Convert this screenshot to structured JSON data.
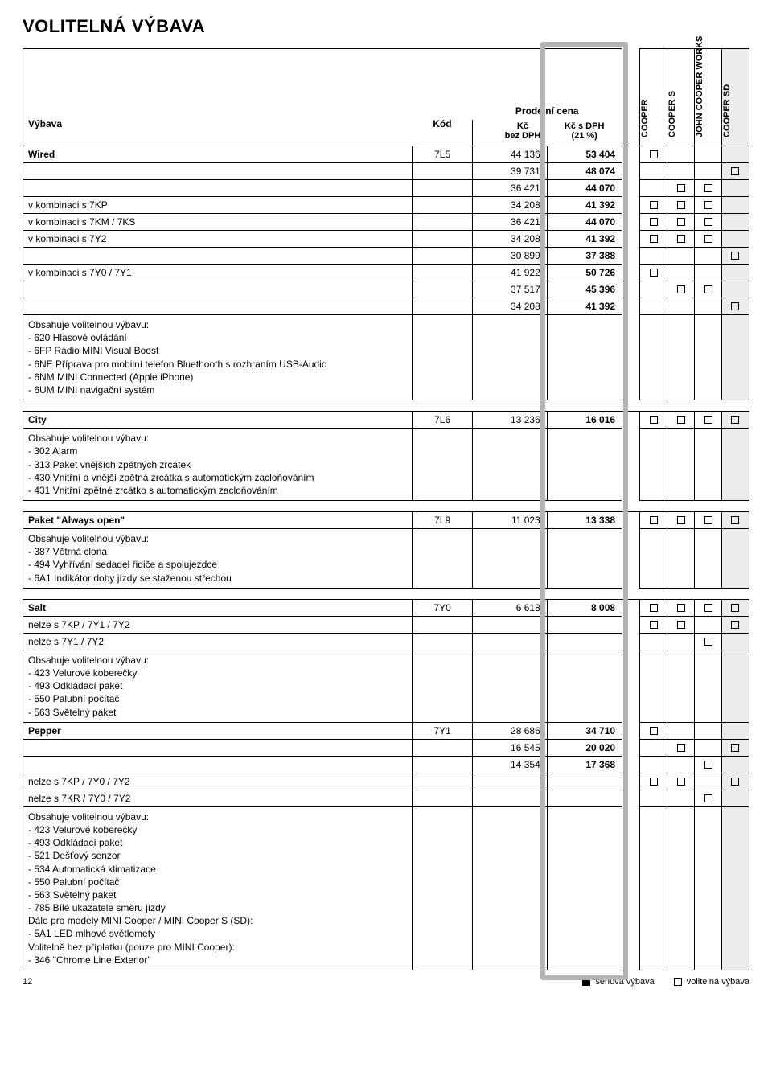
{
  "page": {
    "title": "VOLITELNÁ VÝBAVA",
    "number": "12"
  },
  "headers": {
    "vybava": "Výbava",
    "kod": "Kód",
    "prodejni_cena": "Prodejní cena",
    "kc_bez_dph": "Kč\nbez DPH",
    "kc_s_dph": "Kč s DPH\n(21 %)",
    "cols": [
      "COOPER",
      "COOPER S",
      "JOHN COOPER WORKS",
      "COOPER SD"
    ]
  },
  "legend": {
    "serial": "sériová výbava",
    "optional": "volitelná výbava"
  },
  "groups": [
    {
      "rows": [
        {
          "label": "Wired",
          "bold": true,
          "kod": "7L5",
          "p1": "44 136",
          "p2": "53 404",
          "boxes": [
            true,
            false,
            false,
            false
          ]
        },
        {
          "label": "",
          "p1": "39 731",
          "p2": "48 074",
          "boxes": [
            false,
            false,
            false,
            true
          ]
        },
        {
          "label": "",
          "p1": "36 421",
          "p2": "44 070",
          "boxes": [
            false,
            true,
            true,
            false
          ]
        },
        {
          "label": "v kombinaci s 7KP",
          "p1": "34 208",
          "p2": "41 392",
          "boxes": [
            true,
            true,
            true,
            false
          ]
        },
        {
          "label": "v kombinaci s 7KM / 7KS",
          "p1": "36 421",
          "p2": "44 070",
          "boxes": [
            true,
            true,
            true,
            false
          ]
        },
        {
          "label": "v kombinaci s 7Y2",
          "p1": "34 208",
          "p2": "41 392",
          "boxes": [
            true,
            true,
            true,
            false
          ]
        },
        {
          "label": "",
          "p1": "30 899",
          "p2": "37 388",
          "boxes": [
            false,
            false,
            false,
            true
          ]
        },
        {
          "label": "v kombinaci s 7Y0 / 7Y1",
          "p1": "41 922",
          "p2": "50 726",
          "boxes": [
            true,
            false,
            false,
            false
          ]
        },
        {
          "label": "",
          "p1": "37 517",
          "p2": "45 396",
          "boxes": [
            false,
            true,
            true,
            false
          ]
        },
        {
          "label": "",
          "p1": "34 208",
          "p2": "41 392",
          "boxes": [
            false,
            false,
            false,
            true
          ]
        },
        {
          "label": "Obsahuje volitelnou výbavu:\n- 620 Hlasové ovládání\n- 6FP Rádio MINI Visual Boost\n- 6NE Příprava pro mobilní telefon Bluethooth s rozhraním USB-Audio\n- 6NM MINI Connected (Apple iPhone)\n- 6UM MINI navigační systém",
          "multi": true,
          "boxes": []
        }
      ]
    },
    {
      "rows": [
        {
          "label": "City",
          "bold": true,
          "kod": "7L6",
          "p1": "13 236",
          "p2": "16 016",
          "boxes": [
            true,
            true,
            true,
            true
          ]
        },
        {
          "label": "Obsahuje volitelnou výbavu:\n- 302 Alarm\n- 313 Paket vnějších zpětných zrcátek\n- 430 Vnitřní a vnější zpětná zrcátka s automatickým zacloňováním\n- 431 Vnitřní zpětné zrcátko s automatickým zacloňováním",
          "multi": true,
          "boxes": []
        }
      ]
    },
    {
      "rows": [
        {
          "label": "Paket \"Always open\"",
          "bold": true,
          "kod": "7L9",
          "p1": "11 023",
          "p2": "13 338",
          "boxes": [
            true,
            true,
            true,
            true
          ]
        },
        {
          "label": "Obsahuje volitelnou výbavu:\n- 387 Větrná clona\n- 494 Vyhřívání sedadel řidiče a spolujezdce\n- 6A1 Indikátor doby jízdy se staženou střechou",
          "multi": true,
          "boxes": []
        }
      ]
    },
    {
      "rows": [
        {
          "label": "Salt",
          "bold": true,
          "kod": "7Y0",
          "p1": "6 618",
          "p2": "8 008",
          "boxes": [
            true,
            true,
            true,
            true
          ]
        },
        {
          "label": "nelze s 7KP / 7Y1 / 7Y2",
          "boxes": [
            true,
            true,
            false,
            true
          ]
        },
        {
          "label": "nelze s 7Y1 / 7Y2",
          "boxes": [
            false,
            false,
            true,
            false
          ]
        },
        {
          "label": "Obsahuje volitelnou výbavu:\n- 423 Velurové koberečky\n- 493 Odkládací paket\n- 550 Palubní počítač\n- 563 Světelný paket",
          "multi": true,
          "boxes": []
        },
        {
          "label": "Pepper",
          "bold": true,
          "kod": "7Y1",
          "p1": "28 686",
          "p2": "34 710",
          "boxes": [
            true,
            false,
            false,
            false
          ]
        },
        {
          "label": "",
          "p1": "16 545",
          "p2": "20 020",
          "boxes": [
            false,
            true,
            false,
            true
          ]
        },
        {
          "label": "",
          "p1": "14 354",
          "p2": "17 368",
          "boxes": [
            false,
            false,
            true,
            false
          ]
        },
        {
          "label": "nelze s 7KP / 7Y0 / 7Y2",
          "boxes": [
            true,
            true,
            false,
            true
          ]
        },
        {
          "label": "nelze s 7KR / 7Y0 / 7Y2",
          "boxes": [
            false,
            false,
            true,
            false
          ]
        },
        {
          "label": "Obsahuje volitelnou výbavu:\n- 423 Velurové koberečky\n- 493 Odkládací paket\n- 521 Dešťový senzor\n- 534 Automatická klimatizace\n- 550 Palubní počítač\n- 563 Světelný paket\n- 785 Bílé ukazatele směru jízdy\nDále pro modely MINI Cooper / MINI Cooper S (SD):\n- 5A1 LED mlhové světlomety\nVolitelně bez příplatku (pouze pro MINI Cooper):\n- 346 \"Chrome Line Exterior\"",
          "multi": true,
          "boxes": []
        }
      ]
    }
  ],
  "style": {
    "shade_bg": "#ececec",
    "highlight_border": "#b4b4b4"
  }
}
